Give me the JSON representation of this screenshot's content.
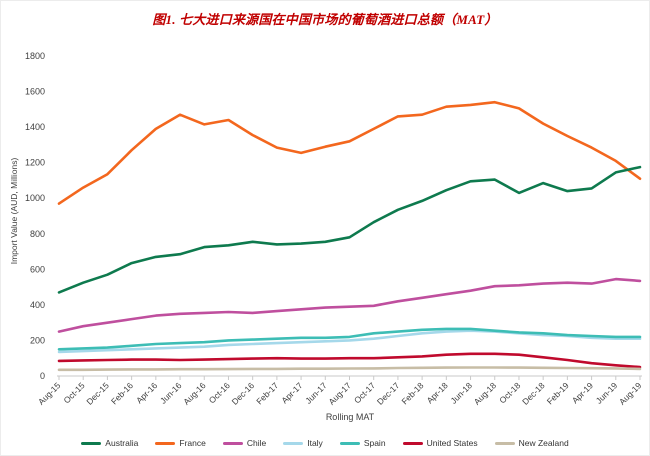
{
  "title": "图1. 七大进口来源国在中国市场的葡萄酒进口总额（MAT）",
  "chart_data": {
    "type": "line",
    "title": "图1. 七大进口来源国在中国市场的葡萄酒进口总额（MAT）",
    "xlabel": "Rolling MAT",
    "ylabel": "Import Value (AUD, Millions)",
    "ylim": [
      0,
      1800
    ],
    "ytick_step": 200,
    "grid": false,
    "legend_position": "bottom",
    "categories": [
      "Aug-15",
      "Oct-15",
      "Dec-15",
      "Feb-16",
      "Apr-16",
      "Jun-16",
      "Aug-16",
      "Oct-16",
      "Dec-16",
      "Feb-17",
      "Apr-17",
      "Jun-17",
      "Aug-17",
      "Oct-17",
      "Dec-17",
      "Feb-18",
      "Apr-18",
      "Jun-18",
      "Aug-18",
      "Oct-18",
      "Dec-18",
      "Feb-19",
      "Apr-19",
      "Jun-19",
      "Aug-19"
    ],
    "series": [
      {
        "name": "Australia",
        "color": "#0e7a4e",
        "values": [
          470,
          525,
          570,
          635,
          670,
          685,
          725,
          735,
          755,
          740,
          745,
          755,
          780,
          865,
          935,
          985,
          1045,
          1095,
          1105,
          1030,
          1085,
          1040,
          1055,
          1145,
          1175
        ]
      },
      {
        "name": "France",
        "color": "#f3671e",
        "values": [
          970,
          1060,
          1135,
          1270,
          1390,
          1470,
          1415,
          1440,
          1355,
          1285,
          1255,
          1290,
          1320,
          1390,
          1460,
          1470,
          1515,
          1525,
          1540,
          1505,
          1420,
          1350,
          1285,
          1210,
          1110
        ]
      },
      {
        "name": "Chile",
        "color": "#bf4f9e",
        "values": [
          250,
          280,
          300,
          320,
          340,
          350,
          355,
          360,
          355,
          365,
          375,
          385,
          390,
          395,
          420,
          440,
          460,
          480,
          505,
          510,
          520,
          525,
          520,
          545,
          535
        ]
      },
      {
        "name": "Italy",
        "color": "#a5d8ea",
        "values": [
          135,
          140,
          145,
          150,
          155,
          160,
          165,
          175,
          180,
          185,
          190,
          195,
          200,
          210,
          225,
          240,
          250,
          255,
          250,
          240,
          230,
          225,
          215,
          210,
          210
        ]
      },
      {
        "name": "Spain",
        "color": "#3dbdb5",
        "values": [
          150,
          155,
          160,
          170,
          180,
          185,
          190,
          200,
          205,
          210,
          215,
          215,
          220,
          240,
          250,
          260,
          265,
          265,
          255,
          245,
          240,
          230,
          225,
          220,
          220
        ]
      },
      {
        "name": "United States",
        "color": "#c00a2d",
        "values": [
          85,
          88,
          90,
          92,
          92,
          90,
          92,
          95,
          98,
          100,
          98,
          98,
          100,
          100,
          105,
          110,
          120,
          125,
          125,
          120,
          105,
          90,
          72,
          60,
          50
        ]
      },
      {
        "name": "New Zealand",
        "color": "#c7bda6",
        "values": [
          35,
          35,
          36,
          37,
          37,
          38,
          38,
          39,
          40,
          40,
          41,
          41,
          42,
          43,
          45,
          46,
          47,
          48,
          48,
          47,
          46,
          45,
          44,
          43,
          40
        ]
      }
    ]
  },
  "axis": {
    "tick_color": "#c9c9c9",
    "label_color": "#404040"
  }
}
